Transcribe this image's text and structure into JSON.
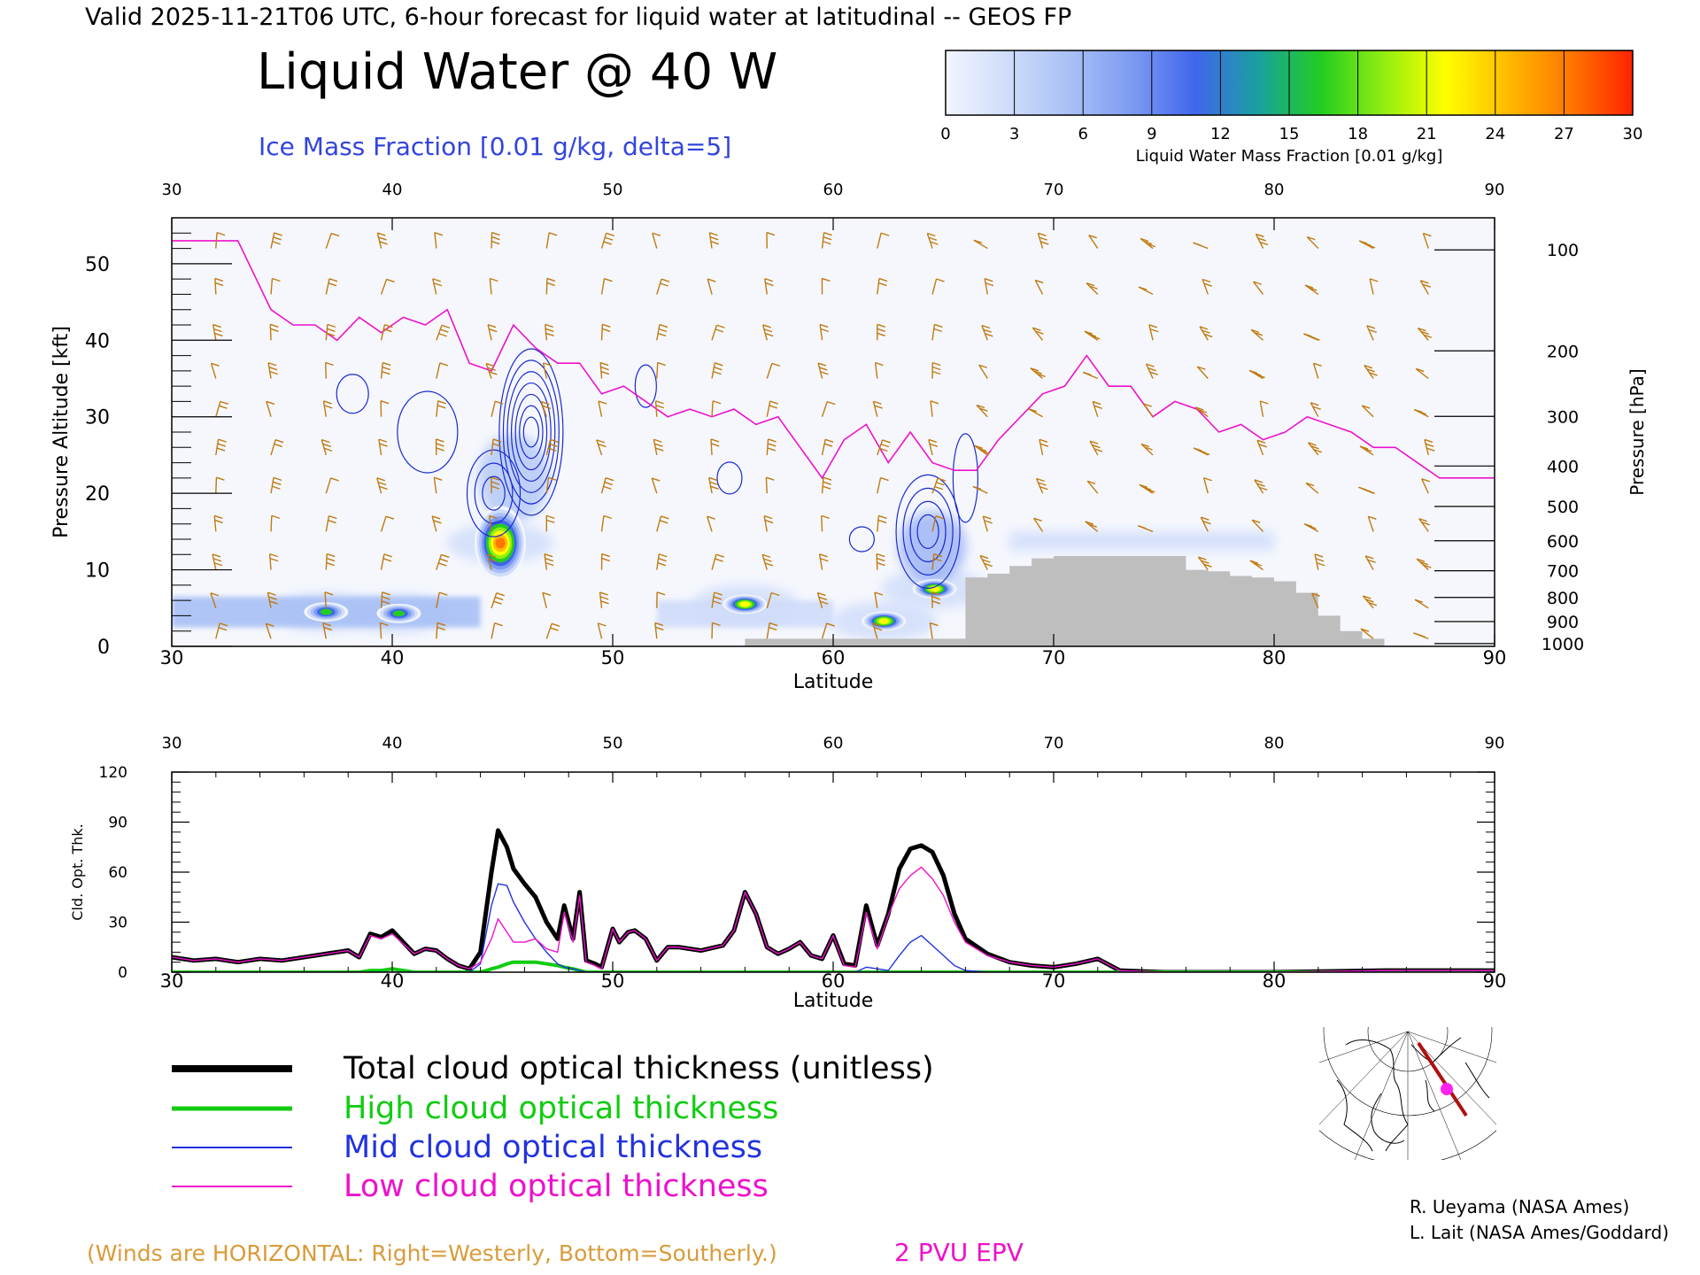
{
  "header": {
    "top_line": "Valid 2025-11-21T06 UTC, 6-hour forecast for liquid water at latitudinal -- GEOS FP",
    "title": "Liquid Water @ 40 W",
    "subtitle": "Ice Mass Fraction [0.01 g/kg, delta=5]"
  },
  "colorbar": {
    "ticks": [
      "0",
      "3",
      "6",
      "9",
      "12",
      "15",
      "18",
      "21",
      "24",
      "27",
      "30"
    ],
    "label": "Liquid Water Mass Fraction [0.01 g/kg]",
    "colors": [
      "#f2f5fd",
      "#cfdcfa",
      "#a8c0f6",
      "#7d9af2",
      "#3f66ec",
      "#1aa0a0",
      "#22cc22",
      "#90ee10",
      "#ffff00",
      "#ffbb00",
      "#ff7700",
      "#ff2200"
    ]
  },
  "chart_data": [
    {
      "type": "heatmap",
      "title": "Liquid Water @ 40 W",
      "xlabel": "Latitude",
      "ylabel": "Pressure Altitude [kft]",
      "y2label": "Pressure [hPa]",
      "xlim": [
        30,
        90
      ],
      "ylim": [
        0,
        56
      ],
      "x_ticks": [
        "30",
        "40",
        "50",
        "60",
        "70",
        "80",
        "90"
      ],
      "y_ticks": [
        "0",
        "10",
        "20",
        "30",
        "40",
        "50"
      ],
      "pressure_ticks": [
        "100",
        "200",
        "300",
        "400",
        "500",
        "600",
        "700",
        "800",
        "900",
        "1000"
      ],
      "liquid_water_maxima": [
        {
          "lat": 44.9,
          "alt_kft": 13.5,
          "value": 27
        },
        {
          "lat": 37.0,
          "alt_kft": 4.5,
          "value": 15
        },
        {
          "lat": 40.3,
          "alt_kft": 4.3,
          "value": 14
        },
        {
          "lat": 56.0,
          "alt_kft": 5.5,
          "value": 22
        },
        {
          "lat": 62.3,
          "alt_kft": 3.3,
          "value": 20
        },
        {
          "lat": 64.6,
          "alt_kft": 7.5,
          "value": 21
        }
      ],
      "epv_2pvu": {
        "lat": [
          30,
          33,
          34.5,
          35.5,
          36.5,
          37.5,
          38.5,
          39.5,
          40.5,
          41.5,
          42.5,
          43.5,
          44.5,
          45.5,
          46.5,
          47.5,
          48.5,
          49.5,
          50.5,
          51.5,
          52.5,
          53.5,
          54.5,
          55.5,
          56.5,
          57.5,
          58.5,
          59.5,
          60.5,
          61.5,
          62.5,
          63.5,
          64.5,
          65.5,
          66.5,
          67.5,
          68.5,
          69.5,
          70.5,
          71.5,
          72.5,
          73.5,
          74.5,
          75.5,
          76.5,
          77.5,
          78.5,
          79.5,
          80.5,
          81.5,
          82.5,
          83.5,
          84.5,
          85.5,
          86.5,
          87.5,
          88.5,
          90
        ],
        "alt_kft": [
          53,
          53,
          44,
          42,
          42,
          40,
          43,
          41,
          43,
          42,
          44,
          37,
          36,
          42,
          39,
          37,
          37,
          33,
          34,
          32,
          30,
          31,
          30,
          31,
          29,
          30,
          26,
          22,
          27,
          29,
          24,
          28,
          24,
          23,
          23,
          27,
          30,
          33,
          34,
          38,
          34,
          34,
          30,
          32,
          31,
          28,
          29,
          27,
          28,
          30,
          29,
          28,
          26,
          26,
          24,
          22,
          22,
          22
        ]
      },
      "terrain": {
        "lat": [
          66,
          67,
          68,
          69,
          70,
          71,
          72,
          73,
          74,
          75,
          76,
          77,
          78,
          79,
          80,
          81,
          82,
          83,
          84
        ],
        "alt_kft": [
          9.0,
          9.5,
          10.5,
          11.5,
          11.8,
          11.8,
          11.8,
          11.8,
          11.8,
          11.8,
          10.0,
          9.8,
          9.2,
          9.0,
          8.5,
          7.0,
          4.0,
          2.0,
          1.0
        ]
      },
      "legend_note": "2 PVU EPV"
    },
    {
      "type": "line",
      "xlabel": "Latitude",
      "ylabel": "Cld. Opt. Thk.",
      "xlim": [
        30,
        90
      ],
      "ylim": [
        0,
        120
      ],
      "x_ticks": [
        "30",
        "40",
        "50",
        "60",
        "70",
        "80",
        "90"
      ],
      "y_ticks": [
        "0",
        "30",
        "60",
        "90",
        "120"
      ],
      "x": [
        30,
        31,
        32,
        33,
        34,
        35,
        36,
        37,
        38,
        38.5,
        39,
        39.5,
        40,
        40.5,
        41,
        41.5,
        42,
        42.5,
        43,
        43.5,
        44,
        44.5,
        44.8,
        45.2,
        45.5,
        46,
        46.5,
        47,
        47.5,
        47.8,
        48.2,
        48.5,
        48.8,
        49.2,
        49.5,
        50,
        50.3,
        50.7,
        51,
        51.5,
        52,
        52.5,
        53,
        54,
        55,
        55.5,
        56,
        56.5,
        57,
        57.5,
        58,
        58.5,
        59,
        59.5,
        60,
        60.5,
        61,
        61.5,
        62,
        62.5,
        63,
        63.5,
        64,
        64.5,
        65,
        65.5,
        66,
        67,
        68,
        69,
        70,
        71,
        72,
        73,
        75,
        80,
        85,
        90
      ],
      "series": [
        {
          "name": "Total cloud optical thickness (unitless)",
          "values": [
            9,
            7,
            8,
            6,
            8,
            7,
            9,
            11,
            13,
            9,
            23,
            21,
            25,
            18,
            11,
            14,
            13,
            8,
            4,
            2,
            12,
            60,
            85,
            75,
            62,
            53,
            45,
            30,
            20,
            40,
            20,
            48,
            7,
            5,
            3,
            26,
            18,
            24,
            25,
            20,
            7,
            15,
            15,
            13,
            16,
            25,
            48,
            35,
            15,
            11,
            14,
            18,
            10,
            8,
            22,
            5,
            4,
            40,
            16,
            35,
            62,
            74,
            76,
            72,
            58,
            35,
            20,
            11,
            6,
            4,
            3,
            5,
            8,
            1,
            0,
            0,
            1,
            1
          ]
        },
        {
          "name": "High cloud optical thickness",
          "values": [
            0,
            0,
            0,
            0,
            0,
            0,
            0,
            0,
            0,
            0,
            1,
            1,
            2,
            1,
            0,
            0,
            0,
            0,
            0,
            0,
            0,
            2,
            3,
            5,
            6,
            6,
            6,
            5,
            4,
            3,
            2,
            1,
            0,
            0,
            0,
            0,
            0,
            0,
            0,
            0,
            0,
            0,
            0,
            0,
            0,
            0,
            0,
            0,
            0,
            0,
            0,
            0,
            0,
            0,
            0,
            0,
            0,
            0,
            0,
            0,
            0,
            0,
            0,
            0,
            0,
            0,
            0,
            0,
            0,
            0,
            0,
            0,
            0,
            0,
            0,
            0,
            0,
            0
          ]
        },
        {
          "name": "Mid cloud optical thickness",
          "values": [
            0,
            0,
            0,
            0,
            0,
            0,
            0,
            0,
            0,
            0,
            0,
            0,
            0,
            0,
            0,
            0,
            0,
            0,
            0,
            0,
            5,
            40,
            53,
            52,
            42,
            30,
            20,
            12,
            5,
            3,
            2,
            1,
            0,
            0,
            0,
            0,
            0,
            0,
            0,
            0,
            0,
            0,
            0,
            0,
            0,
            0,
            0,
            0,
            0,
            0,
            0,
            0,
            0,
            0,
            0,
            0,
            0,
            3,
            2,
            1,
            10,
            18,
            22,
            16,
            10,
            4,
            1,
            0,
            0,
            0,
            0,
            0,
            0,
            0,
            0,
            0,
            0,
            0
          ]
        },
        {
          "name": "Low cloud optical thickness",
          "values": [
            9,
            7,
            8,
            6,
            8,
            7,
            9,
            11,
            13,
            9,
            22,
            20,
            23,
            17,
            11,
            14,
            13,
            8,
            4,
            2,
            6,
            20,
            32,
            24,
            18,
            18,
            20,
            14,
            12,
            36,
            18,
            46,
            6,
            4,
            2,
            26,
            18,
            24,
            25,
            20,
            7,
            15,
            15,
            13,
            16,
            25,
            48,
            35,
            15,
            11,
            14,
            18,
            10,
            8,
            22,
            4,
            3,
            36,
            14,
            34,
            50,
            58,
            63,
            56,
            46,
            30,
            18,
            10,
            6,
            4,
            3,
            5,
            8,
            1,
            0,
            0,
            1,
            1
          ]
        }
      ]
    }
  ],
  "legend": [
    {
      "label": "Total cloud optical thickness (unitless)",
      "color": "#000000"
    },
    {
      "label": "High cloud optical thickness",
      "color": "#11cc11"
    },
    {
      "label": "Mid cloud optical thickness",
      "color": "#2233dd"
    },
    {
      "label": "Low cloud optical thickness",
      "color": "#ee11cc"
    }
  ],
  "credits": {
    "line1": "R. Ueyama (NASA Ames)",
    "line2": "L. Lait (NASA Ames/Goddard)"
  },
  "footer": {
    "winds_note": "(Winds are HORIZONTAL: Right=Westerly, Bottom=Southerly.)",
    "epv_note": "2 PVU EPV"
  },
  "colors": {
    "wind_barb": "#c07a10",
    "epv": "#ee11cc",
    "ice_contour": "#1a2ad0",
    "terrain": "#bebebe",
    "subtitle": "#3344dd",
    "winds_note": "#d99b3a",
    "map_track": "#b01010"
  },
  "icons": {
    "locator_map": "north-polar-locator-map"
  }
}
